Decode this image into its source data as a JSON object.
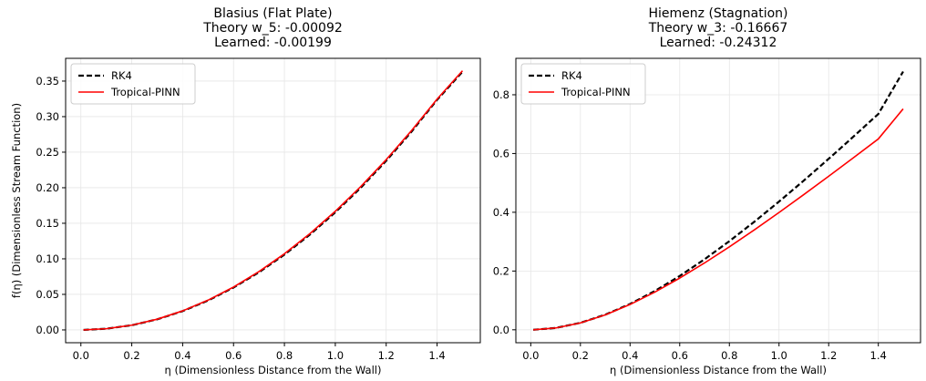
{
  "chart_data": [
    {
      "type": "line",
      "title_lines": [
        "Blasius (Flat Plate)",
        "Theory w_5: -0.00092",
        "Learned: -0.00199"
      ],
      "xlabel": "η (Dimensionless Distance from the Wall)",
      "ylabel": "f(η) (Dimensionless Stream Function)",
      "xlim": [
        -0.06,
        1.57
      ],
      "ylim": [
        -0.018,
        0.382
      ],
      "xticks": [
        0.0,
        0.2,
        0.4,
        0.6,
        0.8,
        1.0,
        1.2,
        1.4
      ],
      "xtick_labels": [
        "0.0",
        "0.2",
        "0.4",
        "0.6",
        "0.8",
        "1.0",
        "1.2",
        "1.4"
      ],
      "yticks": [
        0.0,
        0.05,
        0.1,
        0.15,
        0.2,
        0.25,
        0.3,
        0.35
      ],
      "ytick_labels": [
        "0.00",
        "0.05",
        "0.10",
        "0.15",
        "0.20",
        "0.25",
        "0.30",
        "0.35"
      ],
      "grid": true,
      "legend": "top-left",
      "series": [
        {
          "name": "RK4",
          "color": "#000000",
          "style": "dashed",
          "x": [
            0.01,
            0.1,
            0.2,
            0.3,
            0.4,
            0.5,
            0.6,
            0.7,
            0.8,
            0.9,
            1.0,
            1.1,
            1.2,
            1.3,
            1.4,
            1.5
          ],
          "y": [
            0.0,
            0.0017,
            0.0066,
            0.0149,
            0.0265,
            0.0414,
            0.0596,
            0.0811,
            0.1059,
            0.134,
            0.1654,
            0.2,
            0.2379,
            0.2791,
            0.3236,
            0.3632
          ]
        },
        {
          "name": "Tropical-PINN",
          "color": "#ff0000",
          "style": "solid",
          "x": [
            0.01,
            0.1,
            0.2,
            0.3,
            0.4,
            0.5,
            0.6,
            0.7,
            0.8,
            0.9,
            1.0,
            1.1,
            1.2,
            1.3,
            1.4,
            1.5
          ],
          "y": [
            0.0,
            0.0017,
            0.0067,
            0.0151,
            0.0268,
            0.0419,
            0.0603,
            0.0821,
            0.1071,
            0.1354,
            0.1669,
            0.2016,
            0.2395,
            0.2805,
            0.3246,
            0.3645
          ]
        }
      ]
    },
    {
      "type": "line",
      "title_lines": [
        "Hiemenz (Stagnation)",
        "Theory w_3: -0.16667",
        "Learned: -0.24312"
      ],
      "xlabel": "η (Dimensionless Distance from the Wall)",
      "ylabel": "",
      "xlim": [
        -0.06,
        1.57
      ],
      "ylim": [
        -0.044,
        0.924
      ],
      "xticks": [
        0.0,
        0.2,
        0.4,
        0.6,
        0.8,
        1.0,
        1.2,
        1.4
      ],
      "xtick_labels": [
        "0.0",
        "0.2",
        "0.4",
        "0.6",
        "0.8",
        "1.0",
        "1.2",
        "1.4"
      ],
      "yticks": [
        0.0,
        0.2,
        0.4,
        0.6,
        0.8
      ],
      "ytick_labels": [
        "0.0",
        "0.2",
        "0.4",
        "0.6",
        "0.8"
      ],
      "grid": true,
      "legend": "top-left",
      "series": [
        {
          "name": "RK4",
          "color": "#000000",
          "style": "dashed",
          "x": [
            0.01,
            0.1,
            0.2,
            0.3,
            0.4,
            0.5,
            0.6,
            0.7,
            0.8,
            0.9,
            1.0,
            1.1,
            1.2,
            1.3,
            1.4,
            1.5
          ],
          "y": [
            0.0,
            0.0062,
            0.0237,
            0.0513,
            0.0878,
            0.1321,
            0.1832,
            0.24,
            0.3017,
            0.3674,
            0.4364,
            0.5081,
            0.582,
            0.6577,
            0.7347,
            0.879
          ]
        },
        {
          "name": "Tropical-PINN",
          "color": "#ff0000",
          "style": "solid",
          "x": [
            0.01,
            0.1,
            0.2,
            0.3,
            0.4,
            0.5,
            0.6,
            0.7,
            0.8,
            0.9,
            1.0,
            1.1,
            1.2,
            1.3,
            1.4,
            1.5
          ],
          "y": [
            0.0,
            0.0061,
            0.0234,
            0.0505,
            0.0862,
            0.1284,
            0.1759,
            0.2275,
            0.2824,
            0.3398,
            0.3993,
            0.4603,
            0.5225,
            0.5857,
            0.6496,
            0.752
          ]
        }
      ]
    }
  ]
}
